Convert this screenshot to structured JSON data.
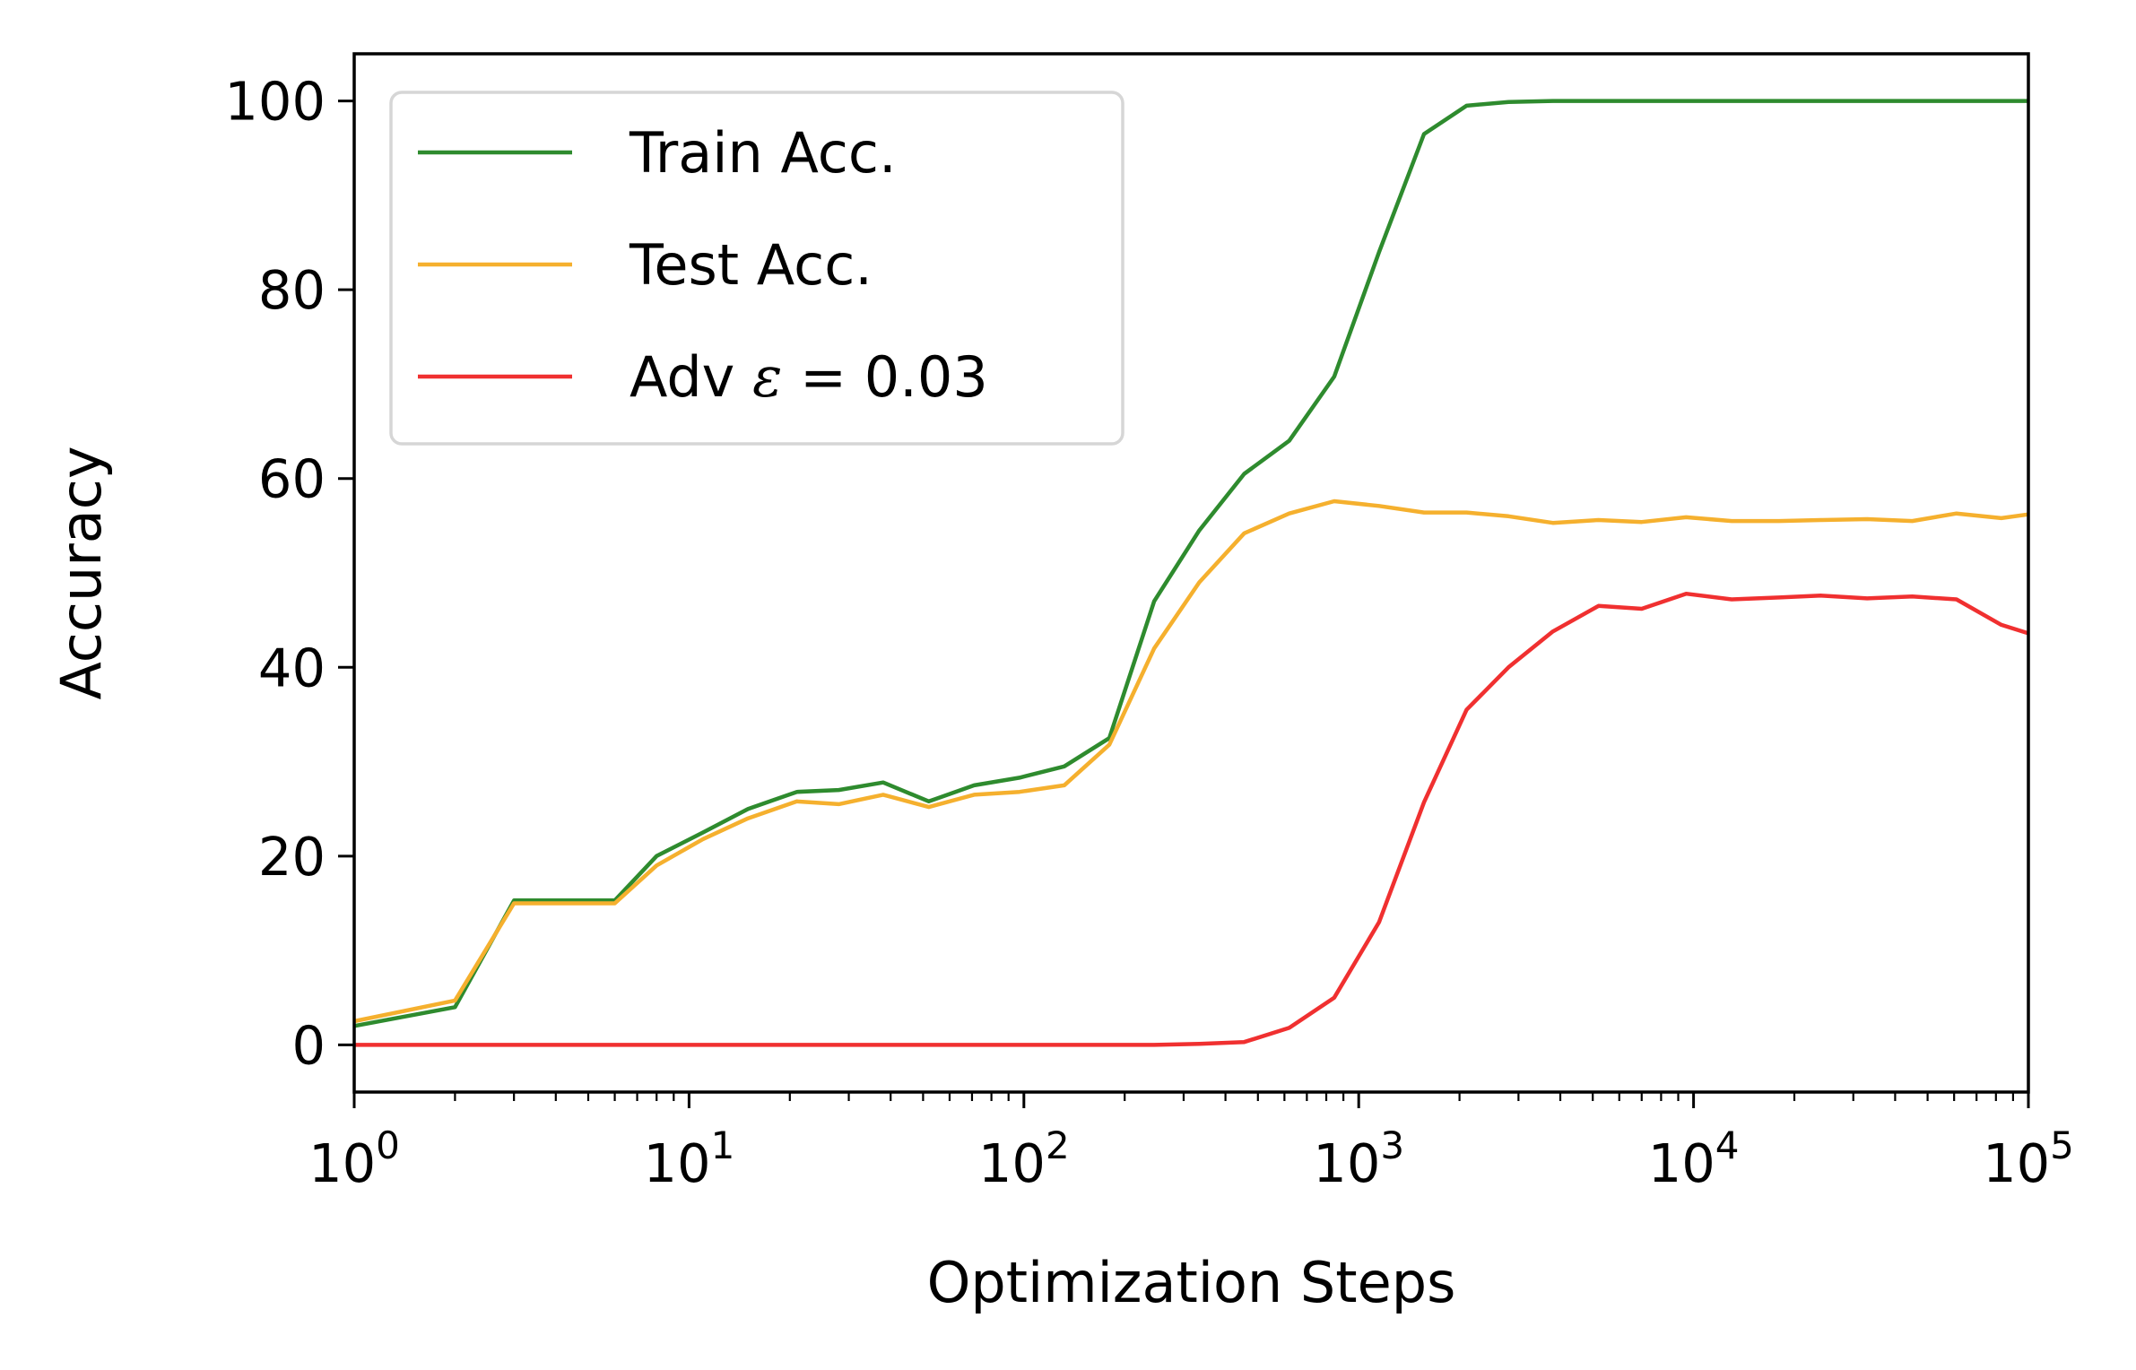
{
  "chart_data": {
    "type": "line",
    "title": "",
    "xlabel": "Optimization Steps",
    "ylabel": "Accuracy",
    "x_scale": "log",
    "xlim": [
      1,
      100000
    ],
    "ylim": [
      -5,
      105
    ],
    "x_ticks": [
      {
        "value": 1,
        "base": "10",
        "exp": "0"
      },
      {
        "value": 10,
        "base": "10",
        "exp": "1"
      },
      {
        "value": 100,
        "base": "10",
        "exp": "2"
      },
      {
        "value": 1000,
        "base": "10",
        "exp": "3"
      },
      {
        "value": 10000,
        "base": "10",
        "exp": "4"
      },
      {
        "value": 100000,
        "base": "10",
        "exp": "5"
      }
    ],
    "y_ticks": [
      0,
      20,
      40,
      60,
      80,
      100
    ],
    "grid": false,
    "legend": {
      "position": "top-left",
      "entries": [
        {
          "series": 0,
          "text": "Train Acc."
        },
        {
          "series": 1,
          "text": "Test Acc."
        },
        {
          "series": 2,
          "prefix": "Adv ",
          "symbol": "ε",
          "suffix": " = 0.03"
        }
      ]
    },
    "series": [
      {
        "name": "Train Acc.",
        "color": "#2e8b2e",
        "x": [
          1,
          2,
          3,
          6,
          8,
          11,
          15,
          21,
          28,
          38,
          52,
          71,
          97,
          132,
          180,
          245,
          334,
          455,
          620,
          845,
          1150,
          1567,
          2100,
          2800,
          3800,
          5200,
          7000,
          9500,
          13000,
          18000,
          24000,
          33000,
          45000,
          61000,
          83000,
          100000
        ],
        "y": [
          2,
          4,
          15.3,
          15.3,
          20,
          22.5,
          25,
          26.8,
          27,
          27.8,
          25.8,
          27.5,
          28.3,
          29.5,
          32.5,
          47,
          54.5,
          60.5,
          64,
          70.8,
          84,
          96.5,
          99.5,
          99.9,
          100,
          100,
          100,
          100,
          100,
          100,
          100,
          100,
          100,
          100,
          100,
          100
        ]
      },
      {
        "name": "Test Acc.",
        "color": "#f5b02e",
        "x": [
          1,
          2,
          3,
          6,
          8,
          11,
          15,
          21,
          28,
          38,
          52,
          71,
          97,
          132,
          180,
          245,
          334,
          455,
          620,
          845,
          1150,
          1567,
          2100,
          2800,
          3800,
          5200,
          7000,
          9500,
          13000,
          18000,
          24000,
          33000,
          45000,
          61000,
          83000,
          100000
        ],
        "y": [
          2.5,
          4.7,
          15,
          15,
          19,
          21.8,
          24,
          25.8,
          25.5,
          26.5,
          25.2,
          26.5,
          26.8,
          27.5,
          31.8,
          42,
          49,
          54.2,
          56.3,
          57.6,
          57.1,
          56.4,
          56.4,
          56,
          55.3,
          55.6,
          55.4,
          55.9,
          55.5,
          55.5,
          55.6,
          55.7,
          55.5,
          56.3,
          55.8,
          56.2
        ]
      },
      {
        "name": "Adv ε = 0.03",
        "color": "#f03030",
        "x": [
          1,
          2,
          3,
          6,
          8,
          11,
          15,
          21,
          28,
          38,
          52,
          71,
          97,
          132,
          180,
          245,
          334,
          455,
          620,
          845,
          1150,
          1567,
          2100,
          2800,
          3800,
          5200,
          7000,
          9500,
          13000,
          18000,
          24000,
          33000,
          45000,
          61000,
          83000,
          100000
        ],
        "y": [
          0,
          0,
          0,
          0,
          0,
          0,
          0,
          0,
          0,
          0,
          0,
          0,
          0,
          0,
          0,
          0,
          0.1,
          0.3,
          1.8,
          5,
          13,
          25.7,
          35.5,
          40,
          43.8,
          46.5,
          46.2,
          47.8,
          47.2,
          47.4,
          47.6,
          47.3,
          47.5,
          47.2,
          44.5,
          43.6
        ]
      }
    ]
  }
}
